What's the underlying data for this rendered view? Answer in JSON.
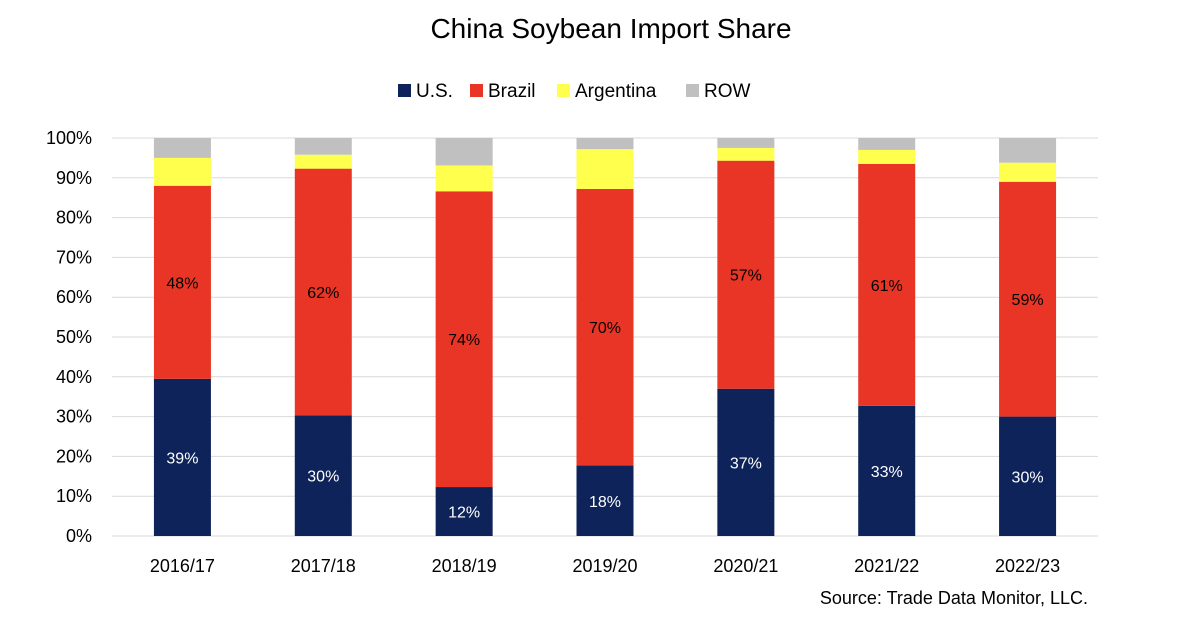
{
  "chart_data": {
    "type": "bar",
    "stacked": true,
    "title": "China Soybean Import Share",
    "categories": [
      "2016/17",
      "2017/18",
      "2018/19",
      "2019/20",
      "2020/21",
      "2021/22",
      "2022/23"
    ],
    "series": [
      {
        "name": "U.S.",
        "color": "#0d2359",
        "values": [
          39.5,
          30.3,
          12.3,
          17.7,
          37.0,
          32.7,
          30.0
        ],
        "labels": [
          "39%",
          "30%",
          "12%",
          "18%",
          "37%",
          "33%",
          "30%"
        ],
        "label_color": "#ffffff"
      },
      {
        "name": "Brazil",
        "color": "#e83525",
        "values": [
          48.5,
          62.0,
          74.3,
          69.5,
          57.3,
          60.8,
          59.0
        ],
        "labels": [
          "48%",
          "62%",
          "74%",
          "70%",
          "57%",
          "61%",
          "59%"
        ],
        "label_color": "#000000"
      },
      {
        "name": "Argentina",
        "color": "#ffff4d",
        "values": [
          7.0,
          3.5,
          6.5,
          10.0,
          3.2,
          3.5,
          4.8
        ],
        "labels": []
      },
      {
        "name": "ROW",
        "color": "#c0c0c0",
        "values": [
          5.0,
          4.2,
          6.9,
          2.8,
          2.5,
          3.0,
          6.2
        ],
        "labels": []
      }
    ],
    "ylim": [
      0,
      100
    ],
    "yticks": [
      "0%",
      "10%",
      "20%",
      "30%",
      "40%",
      "50%",
      "60%",
      "70%",
      "80%",
      "90%",
      "100%"
    ],
    "grid": true,
    "legend_position": "top-center",
    "source": "Source: Trade Data Monitor, LLC."
  }
}
